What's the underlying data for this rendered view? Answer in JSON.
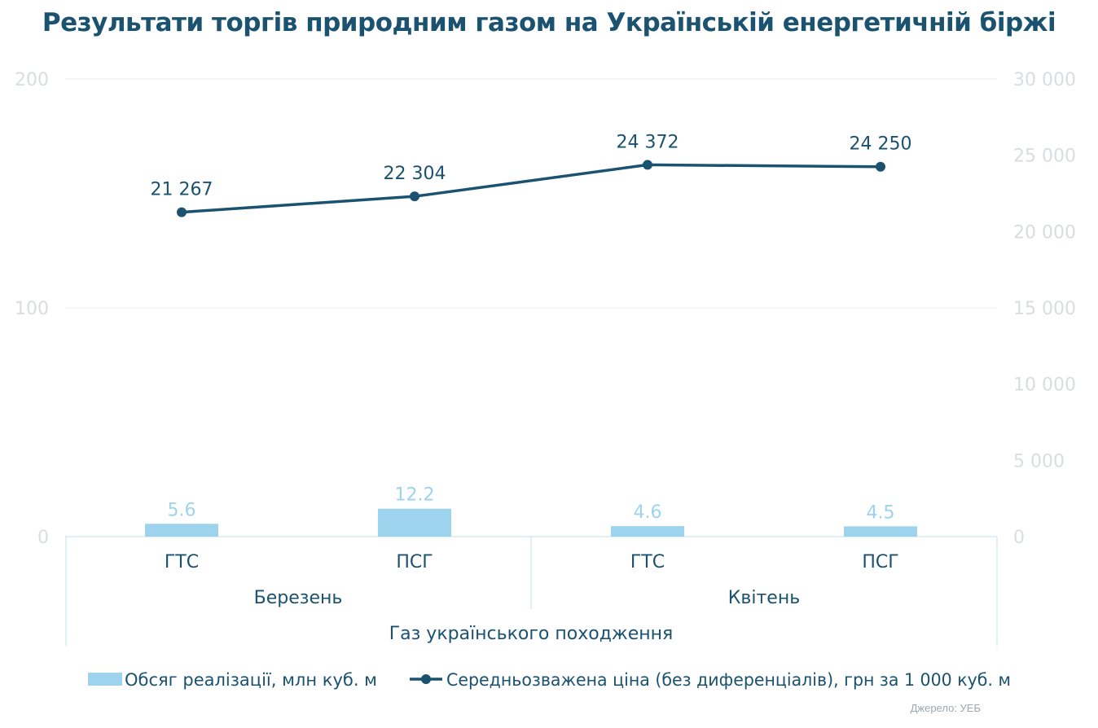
{
  "title": "Результати торгів природним газом на Українській енергетичній біржі",
  "source": "Джерело: УЕБ",
  "colors": {
    "bar": "#9ed3ee",
    "line": "#1a5270",
    "axis_text": "#d9dde0",
    "grid": "#eeeeee",
    "cat_text": "#1a5270"
  },
  "chart_data": {
    "type": "bar",
    "categories": [
      "ГТС",
      "ПСГ",
      "ГТС",
      "ПСГ"
    ],
    "groups": [
      {
        "label": "Березень",
        "span": [
          0,
          1
        ]
      },
      {
        "label": "Квітень",
        "span": [
          2,
          3
        ]
      }
    ],
    "supergroup": "Газ українського походження",
    "series": [
      {
        "name": "Обсяг реалізації, млн куб. м",
        "type": "bar",
        "axis": "left",
        "values": [
          5.6,
          12.2,
          4.6,
          4.5
        ],
        "labels": [
          "5.6",
          "12.2",
          "4.6",
          "4.5"
        ]
      },
      {
        "name": "Середньозважена ціна (без диференціалів), грн за 1 000 куб. м",
        "type": "line",
        "axis": "right",
        "values": [
          21267,
          22304,
          24372,
          24250
        ],
        "labels": [
          "21 267",
          "22 304",
          "24 372",
          "24 250"
        ]
      }
    ],
    "y_left": {
      "min": 0,
      "max": 200,
      "ticks": [
        "0",
        "100",
        "200"
      ]
    },
    "y_right": {
      "min": 0,
      "max": 30000,
      "ticks": [
        "0",
        "5 000",
        "10 000",
        "15 000",
        "20 000",
        "25 000",
        "30 000"
      ]
    },
    "grid": true,
    "legend": "bottom"
  }
}
